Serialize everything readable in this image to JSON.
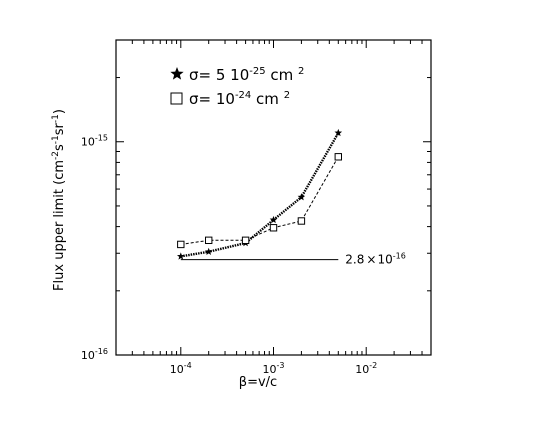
{
  "chart_data": {
    "type": "line",
    "x_scale": "log",
    "y_scale": "log",
    "xlim": [
      2e-05,
      0.05
    ],
    "ylim": [
      1e-16,
      3e-15
    ],
    "grid": false,
    "legend_placement": "top-left",
    "xlabel": {
      "base": "β=v/c"
    },
    "ylabel": {
      "text": "Flux upper limit (cm",
      "e1": "-2",
      "t2": "s",
      "e2": "-1",
      "t3": "sr",
      "e3": "-1",
      "t4": ")"
    },
    "x_ticks": [
      {
        "value": 0.0001,
        "base": "10",
        "exp": "-4"
      },
      {
        "value": 0.001,
        "base": "10",
        "exp": "-3"
      },
      {
        "value": 0.01,
        "base": "10",
        "exp": "-2"
      }
    ],
    "y_ticks": [
      {
        "value": 1e-16,
        "base": "10",
        "exp": "-16"
      },
      {
        "value": 1e-15,
        "base": "10",
        "exp": "-15"
      }
    ],
    "series": [
      {
        "name": {
          "prefix": "σ= 5 10",
          "exp": "-25",
          "unit": " cm ",
          "unit_exp": "2"
        },
        "marker": "star",
        "line_style": "dotted-thick",
        "color": "#000000",
        "x": [
          0.0001,
          0.0002,
          0.0005,
          0.001,
          0.002,
          0.005
        ],
        "y": [
          2.9e-16,
          3.05e-16,
          3.35e-16,
          4.3e-16,
          5.5e-16,
          1.1e-15
        ]
      },
      {
        "name": {
          "prefix": "σ= 10",
          "exp": "-24",
          "unit": " cm ",
          "unit_exp": "2"
        },
        "marker": "square",
        "line_style": "dashed",
        "color": "#000000",
        "x": [
          0.0001,
          0.0002,
          0.0005,
          0.001,
          0.002,
          0.005
        ],
        "y": [
          3.3e-16,
          3.45e-16,
          3.45e-16,
          3.95e-16,
          4.25e-16,
          8.5e-16
        ]
      }
    ],
    "reference_line": {
      "y": 2.8e-16,
      "x_range": [
        0.0001,
        0.005
      ],
      "label_base": "2.8",
      "label_times": "×",
      "label_pow": "10",
      "label_exp": "-16"
    }
  }
}
